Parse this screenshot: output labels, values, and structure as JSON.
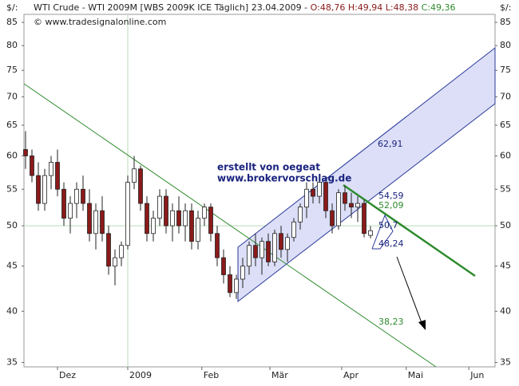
{
  "chart_data": {
    "type": "candlestick",
    "title": "WTI Crude - WTI 2009M [WBS 2009K ICE  Täglich] 23.04.2009 -",
    "ohlc_text": "O:48,76 H:49,94 L:48,38",
    "close_text": "C:49,36",
    "watermark": "© www.tradesignalonline.com",
    "y_unit": "$/:",
    "log_scale": true,
    "ylim": [
      34.6,
      86.8
    ],
    "yticks": [
      35,
      40,
      45,
      50,
      55,
      60,
      65,
      70,
      75,
      80,
      85
    ],
    "xlim": [
      -0.25,
      73.5
    ],
    "xticks": [
      {
        "value": 5,
        "label": "Dez"
      },
      {
        "value": 16,
        "label": "2009"
      },
      {
        "value": 27.6,
        "label": "Feb"
      },
      {
        "value": 38.25,
        "label": "Mär"
      },
      {
        "value": 49.5,
        "label": "Apr"
      },
      {
        "value": 59.6,
        "label": "Mai"
      },
      {
        "value": 69.4,
        "label": "Jun"
      }
    ],
    "grid_ytick_index": 3,
    "grid_xtick_index": 1,
    "up_color": "#ffffff",
    "down_color": "#8b1a1a",
    "open": [
      61,
      60,
      57,
      53,
      57,
      59,
      55,
      51,
      53,
      55,
      53,
      49,
      52,
      49,
      45,
      46,
      47.5,
      56,
      58,
      53,
      49,
      51,
      54,
      50,
      52,
      50,
      52,
      48,
      51,
      52.5,
      49,
      46,
      44,
      42,
      43.5,
      45,
      47.5,
      46,
      48,
      45.5,
      49,
      47,
      48.5,
      50.5,
      52.5,
      55,
      54,
      56,
      52,
      50,
      54.5,
      53,
      52.5,
      53,
      48.76
    ],
    "high": [
      64,
      61,
      59,
      58,
      60,
      61,
      56,
      54,
      56,
      57,
      55,
      53,
      54,
      50,
      47,
      48,
      57,
      60,
      58.5,
      54,
      52,
      55,
      55,
      53,
      54,
      53,
      53,
      52,
      53,
      53,
      50,
      47,
      45,
      44,
      46,
      48,
      49,
      48.5,
      49,
      49.5,
      50,
      49,
      51,
      53,
      56,
      56,
      57,
      56.5,
      53,
      55,
      55.5,
      54.5,
      54,
      53.5,
      49.94
    ],
    "low": [
      58,
      56,
      52,
      52,
      55,
      54,
      50,
      49,
      51,
      52,
      48,
      47,
      48,
      44,
      42.8,
      45,
      47,
      55,
      52,
      48,
      48,
      50,
      49,
      48,
      49,
      48,
      47,
      47,
      50,
      48,
      45,
      43,
      41.5,
      41.3,
      42.5,
      44,
      45,
      44,
      45,
      45,
      46,
      45.5,
      48,
      49.5,
      51,
      53,
      53,
      51,
      49,
      49.5,
      52,
      51,
      50.5,
      48.5,
      48.38
    ],
    "close": [
      60,
      57,
      53,
      57,
      59,
      55,
      51,
      53,
      55,
      53,
      49,
      52,
      49,
      45,
      46,
      47.5,
      56,
      58,
      53,
      49,
      51,
      54,
      50,
      52,
      50,
      52,
      48,
      51,
      52.5,
      49,
      46,
      44,
      42,
      43.5,
      45,
      47.5,
      46,
      48,
      45.5,
      49,
      47,
      48.5,
      50.5,
      52.5,
      55,
      54,
      56,
      52,
      50,
      54.5,
      53,
      52.5,
      53,
      49,
      49.36
    ],
    "author": [
      "erstellt von oegeat",
      "www.brokervorschlag.de"
    ],
    "annotations": [
      {
        "text": "62,91",
        "color": "#1a237e"
      },
      {
        "text": "54,59",
        "color": "#1a237e"
      },
      {
        "text": "52,09",
        "color": "#2e8b2e"
      },
      {
        "text": "50,7",
        "color": "#1a237e"
      },
      {
        "text": "48,24",
        "color": "#1a237e"
      },
      {
        "text": "38,23",
        "color": "#2e8b2e"
      }
    ]
  }
}
